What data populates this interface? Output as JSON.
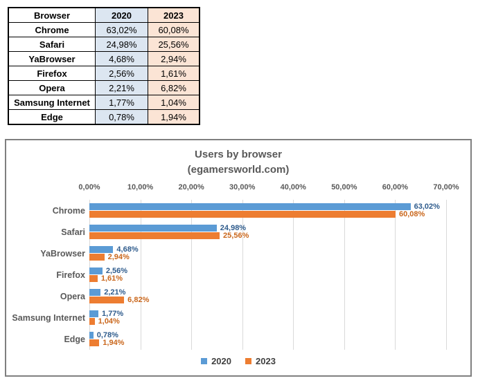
{
  "table": {
    "headers": {
      "browser": "Browser",
      "col2020": "2020",
      "col2023": "2023"
    },
    "rows": [
      {
        "browser": "Chrome",
        "y2020": "63,02%",
        "y2023": "60,08%"
      },
      {
        "browser": "Safari",
        "y2020": "24,98%",
        "y2023": "25,56%"
      },
      {
        "browser": "YaBrowser",
        "y2020": "4,68%",
        "y2023": "2,94%"
      },
      {
        "browser": "Firefox",
        "y2020": "2,56%",
        "y2023": "1,61%"
      },
      {
        "browser": "Opera",
        "y2020": "2,21%",
        "y2023": "6,82%"
      },
      {
        "browser": "Samsung Internet",
        "y2020": "1,77%",
        "y2023": "1,04%"
      },
      {
        "browser": "Edge",
        "y2020": "0,78%",
        "y2023": "1,94%"
      }
    ],
    "colors": {
      "fill_2020": "#DCE6F1",
      "fill_2023": "#FBE4D5",
      "border": "#000000",
      "text": "#000000"
    }
  },
  "chart_data": {
    "type": "bar",
    "orientation": "horizontal",
    "title": "Users by browser",
    "subtitle": "(egamersworld.com)",
    "categories": [
      "Chrome",
      "Safari",
      "YaBrowser",
      "Firefox",
      "Opera",
      "Samsung Internet",
      "Edge"
    ],
    "series": [
      {
        "name": "2020",
        "color": "#5B9BD5",
        "label_color": "#2E5B8C",
        "values": [
          63.02,
          24.98,
          4.68,
          2.56,
          2.21,
          1.77,
          0.78
        ],
        "labels": [
          "63,02%",
          "24,98%",
          "4,68%",
          "2,56%",
          "2,21%",
          "1,77%",
          "0,78%"
        ]
      },
      {
        "name": "2023",
        "color": "#ED7D31",
        "label_color": "#C9661B",
        "values": [
          60.08,
          25.56,
          2.94,
          1.61,
          6.82,
          1.04,
          1.94
        ],
        "labels": [
          "60,08%",
          "25,56%",
          "2,94%",
          "1,61%",
          "6,82%",
          "1,04%",
          "1,94%"
        ]
      }
    ],
    "x_ticks": [
      "0,00%",
      "10,00%",
      "20,00%",
      "30,00%",
      "40,00%",
      "50,00%",
      "60,00%",
      "70,00%"
    ],
    "xlim": [
      0,
      70
    ],
    "grid": true,
    "gridline_color": "#D9D9D9",
    "legend_position": "bottom",
    "title_color": "#595959",
    "axis_text_color": "#595959",
    "category_text_color": "#595959",
    "legend_text_color": "#404040",
    "chart_border_color": "#7F7F7F"
  }
}
